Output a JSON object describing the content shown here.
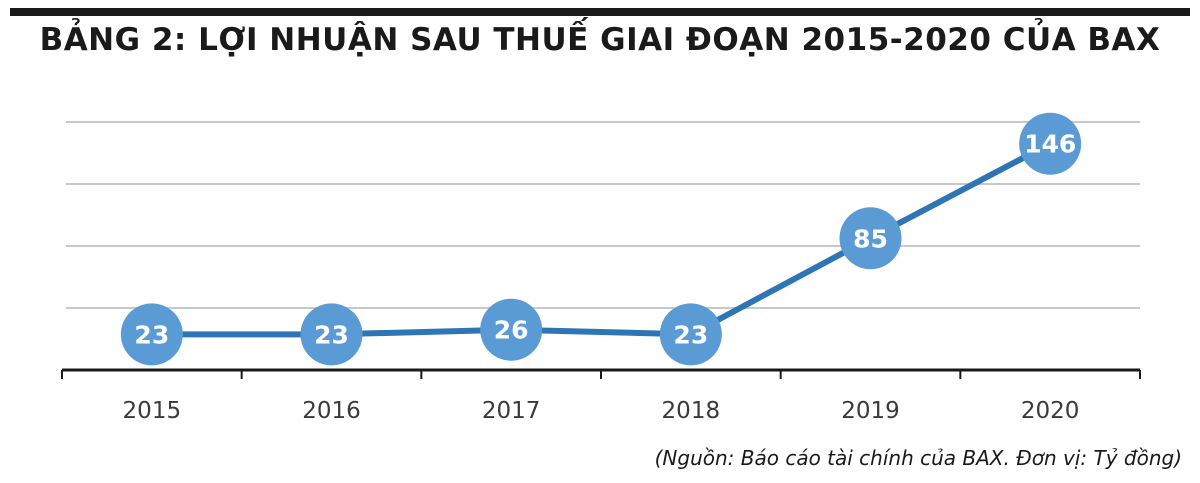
{
  "title": "BẢNG 2: LỢI NHUẬN SAU THUẾ GIAI ĐOẠN 2015-2020 CỦA BAX",
  "source_note": "(Nguồn: Báo cáo tài chính của BAX. Đơn vị: Tỷ đồng)",
  "colors": {
    "line": "#2e75b6",
    "marker": "#5b9bd5",
    "grid": "#c8c8c8",
    "axis": "#1a1a1a",
    "tick_label": "#3a3a3a",
    "data_label": "#ffffff"
  },
  "chart_data": {
    "type": "line",
    "categories": [
      "2015",
      "2016",
      "2017",
      "2018",
      "2019",
      "2020"
    ],
    "values": [
      23,
      23,
      26,
      23,
      85,
      146
    ],
    "data_labels": [
      "23",
      "23",
      "26",
      "23",
      "85",
      "146"
    ],
    "title": "BẢNG 2: LỢI NHUẬN SAU THUẾ GIAI ĐOẠN 2015-2020 CỦA BAX",
    "xlabel": "",
    "ylabel": "",
    "ylim": [
      0,
      160
    ],
    "grid": true,
    "legend": "none"
  }
}
